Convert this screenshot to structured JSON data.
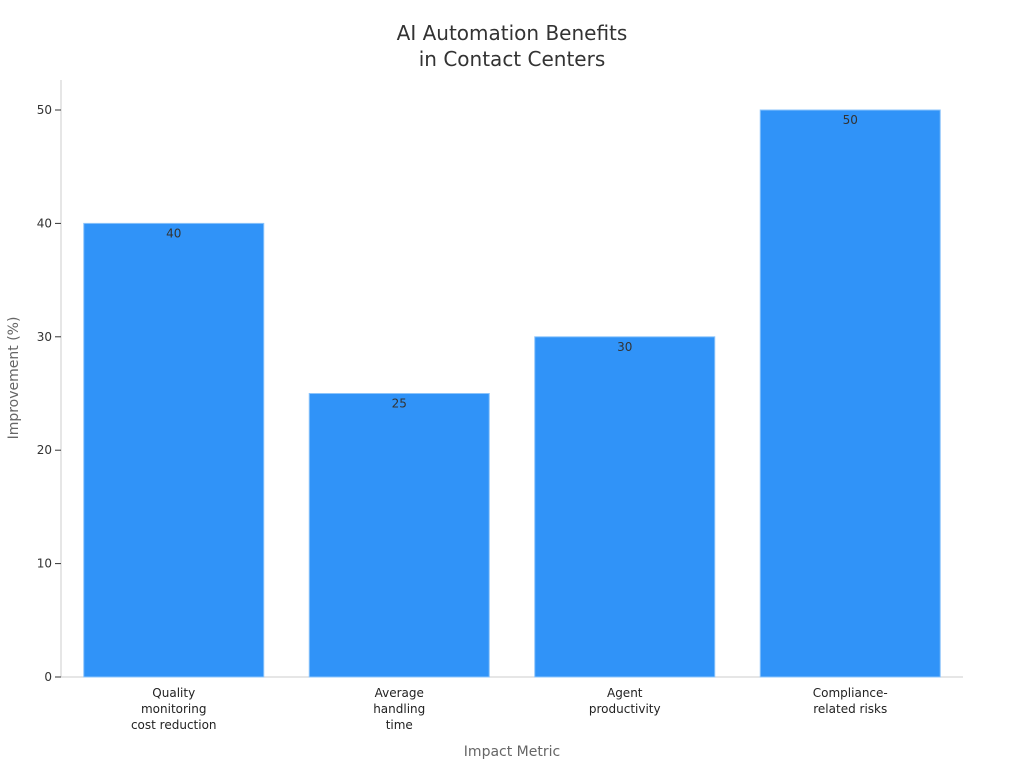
{
  "chart_data": {
    "type": "bar",
    "title": [
      "AI Automation Benefits",
      "in Contact Centers"
    ],
    "xlabel": "Impact Metric",
    "ylabel": "Improvement (%)",
    "categories": [
      [
        "Quality",
        "monitoring",
        "cost reduction"
      ],
      [
        "Average",
        "handling",
        "time"
      ],
      [
        "Agent",
        "productivity"
      ],
      [
        "Compliance-",
        "related risks"
      ]
    ],
    "values": [
      40,
      25,
      30,
      50
    ],
    "ylim": [
      0,
      52.5
    ],
    "yticks": [
      0,
      10,
      20,
      30,
      40,
      50
    ],
    "bar_color": "#3093F8",
    "grid": false,
    "data_labels": true
  }
}
